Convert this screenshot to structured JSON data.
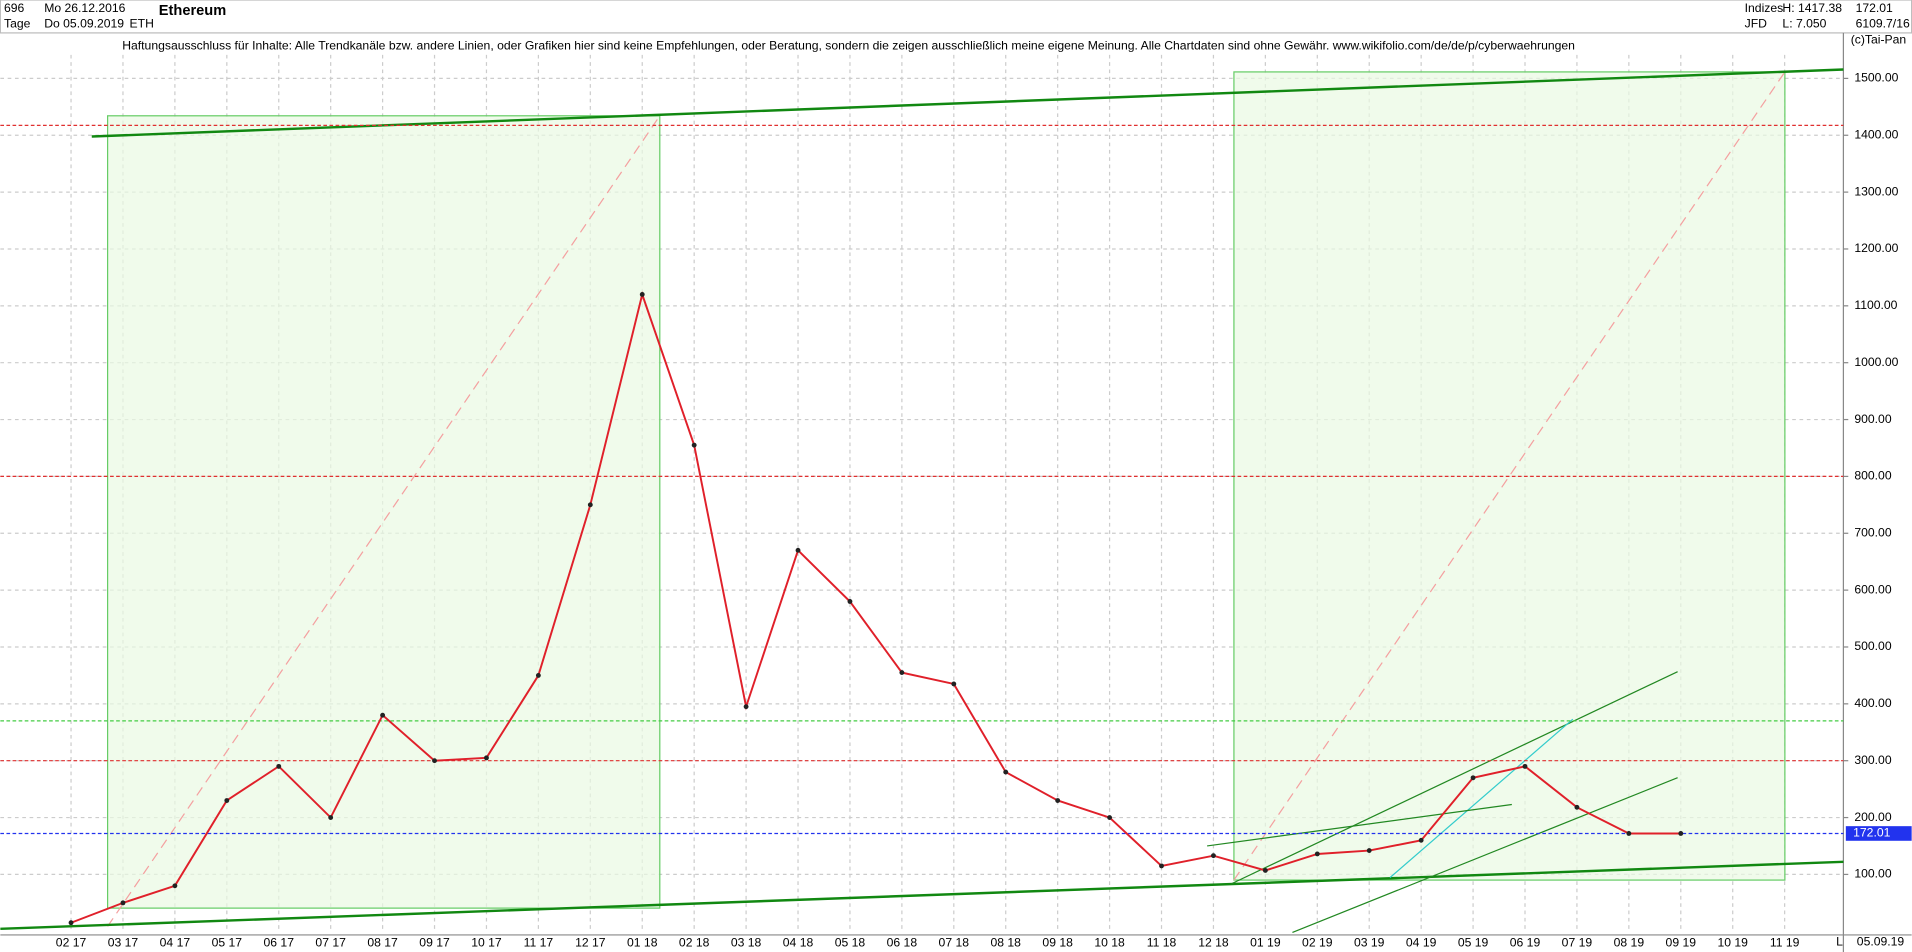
{
  "header": {
    "count": "696",
    "start_date": "Mo 26.12.2016",
    "period": "Tage",
    "end_date": "Do 05.09.2019",
    "symbol": "ETH",
    "name": "Ethereum",
    "market": "Indizes",
    "high": "H: 1417.38",
    "last": "172.01",
    "broker": "JFD",
    "low": "L: 7.050",
    "info": "6109.7/16"
  },
  "disclaimer": "Haftungsausschluss für Inhalte: Alle Trendkanäle bzw. andere Linien, oder Grafiken hier sind keine Empfehlungen, oder Beratung, sondern die zeigen ausschließlich meine eigene Meinung. Alle Chartdaten sind ohne Gewähr.  www.wikifolio.com/de/de/p/cyberwaehrungen",
  "copyright": "(c)Tai-Pan",
  "footer": {
    "date": "05.09.19",
    "scale": "L"
  },
  "chart_data": {
    "type": "line",
    "categories": [
      "02 17",
      "03 17",
      "04 17",
      "05 17",
      "06 17",
      "07 17",
      "08 17",
      "09 17",
      "10 17",
      "11 17",
      "12 17",
      "01 18",
      "02 18",
      "03 18",
      "04 18",
      "05 18",
      "06 18",
      "07 18",
      "08 18",
      "09 18",
      "10 18",
      "11 18",
      "12 18",
      "01 19",
      "02 19",
      "03 19",
      "04 19",
      "05 19",
      "06 19",
      "07 19",
      "08 19",
      "09 19",
      "10 19",
      "11 19"
    ],
    "series": [
      {
        "name": "ETH",
        "color": "#e0202a",
        "values": [
          15,
          50,
          80,
          230,
          290,
          200,
          380,
          300,
          305,
          450,
          750,
          1120,
          855,
          395,
          670,
          580,
          455,
          435,
          280,
          230,
          200,
          115,
          133,
          107,
          136,
          142,
          160,
          270,
          290,
          218,
          172,
          172,
          null,
          null
        ]
      }
    ],
    "ylim": [
      0,
      1580
    ],
    "yticks": [
      {
        "value": 100,
        "label": "100.00"
      },
      {
        "value": 200,
        "label": "200.00"
      },
      {
        "value": 300,
        "label": "300.00"
      },
      {
        "value": 400,
        "label": "400.00"
      },
      {
        "value": 500,
        "label": "500.00"
      },
      {
        "value": 600,
        "label": "600.00"
      },
      {
        "value": 700,
        "label": "700.00"
      },
      {
        "value": 800,
        "label": "800.00"
      },
      {
        "value": 900,
        "label": "900.00"
      },
      {
        "value": 1000,
        "label": "1000.00"
      },
      {
        "value": 1100,
        "label": "1100.00"
      },
      {
        "value": 1200,
        "label": "1200.00"
      },
      {
        "value": 1300,
        "label": "1300.00"
      },
      {
        "value": 1400,
        "label": "1400.00"
      },
      {
        "value": 1500,
        "label": "1500.00"
      }
    ],
    "grid": true,
    "reference_lines": [
      {
        "value": 1417.38,
        "color": "#e03030"
      },
      {
        "value": 800,
        "color": "#e03030"
      },
      {
        "value": 370,
        "color": "#44cc44"
      },
      {
        "value": 300,
        "color": "#e03030"
      },
      {
        "value": 172.01,
        "color": "#2233ee",
        "label": "172.01"
      }
    ]
  }
}
